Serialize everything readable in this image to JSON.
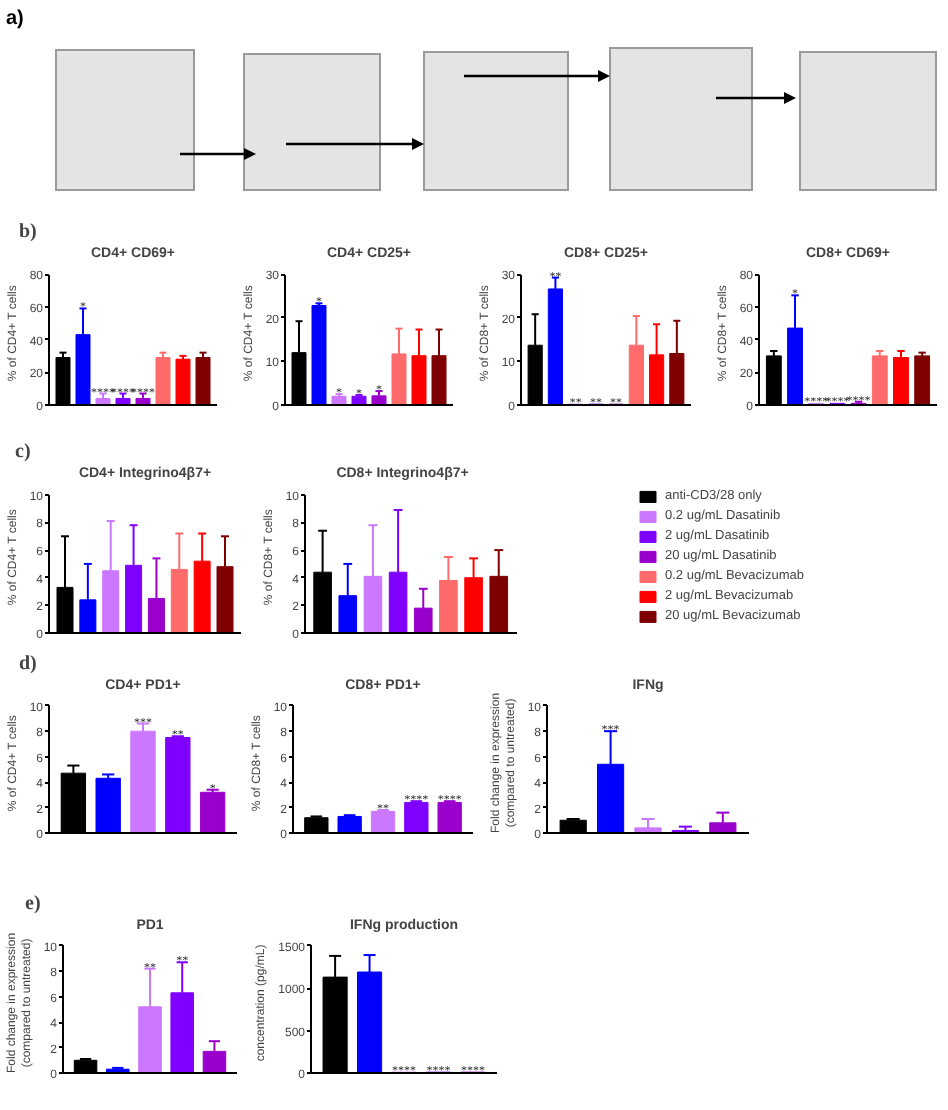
{
  "chart_data": [
    {
      "type": "other",
      "annotations": [
        "a)"
      ]
    },
    {
      "type": "bar",
      "title": "CD4+ CD69+",
      "ylabel": "% of CD4+ T cells",
      "annotations": [
        "b)"
      ],
      "categories": [
        null,
        null,
        null,
        null,
        null,
        null,
        null,
        null
      ],
      "values": [
        29,
        43,
        4,
        4,
        4,
        29,
        28,
        29
      ],
      "colors": [
        "#000000",
        "#0000ff",
        "#cc77ff",
        "#8000ff",
        "#9900cc",
        "#ff6b6b",
        "#ff0000",
        "#7f0000"
      ],
      "errors": [
        [
          29,
          32
        ],
        [
          43,
          59
        ],
        [
          4,
          7
        ],
        [
          4,
          7
        ],
        [
          4,
          7
        ],
        [
          29,
          32
        ],
        [
          28,
          30
        ],
        [
          29,
          32
        ]
      ],
      "value_labels": [
        null,
        "*",
        "****",
        "****",
        "****",
        null,
        null,
        null
      ],
      "ylim": [
        0,
        80
      ],
      "yticks": [
        0,
        20,
        40,
        60,
        80
      ],
      "tick_labels": "y"
    },
    {
      "type": "bar",
      "title": "CD4+ CD25+",
      "ylabel": "% of CD4+ T cells",
      "categories": [
        null,
        null,
        null,
        null,
        null,
        null,
        null,
        null
      ],
      "values": [
        12,
        22.8,
        2,
        2,
        2.1,
        11.7,
        11.3,
        11.3
      ],
      "colors": [
        "#000000",
        "#0000ff",
        "#cc77ff",
        "#8000ff",
        "#9900cc",
        "#ff6b6b",
        "#ff0000",
        "#7f0000"
      ],
      "errors": [
        [
          12,
          19.2
        ],
        [
          22.8,
          23.3
        ],
        [
          2,
          2.5
        ],
        [
          2,
          2.3
        ],
        [
          2.1,
          3.2
        ],
        [
          11.7,
          17.5
        ],
        [
          11.3,
          17.3
        ],
        [
          11.3,
          17.3
        ]
      ],
      "value_labels": [
        null,
        "*",
        "*",
        "*",
        "*",
        null,
        null,
        null
      ],
      "ylim": [
        0,
        30
      ],
      "yticks": [
        0,
        10,
        20,
        30
      ],
      "tick_labels": "y"
    },
    {
      "type": "bar",
      "title": "CD8+ CD25+",
      "ylabel": "% of CD8+ T cells",
      "categories": [
        null,
        null,
        null,
        null,
        null,
        null,
        null,
        null
      ],
      "values": [
        13.7,
        26.6,
        0.2,
        0.2,
        0.2,
        13.7,
        11.5,
        11.8
      ],
      "colors": [
        "#000000",
        "#0000ff",
        "#cc77ff",
        "#8000ff",
        "#9900cc",
        "#ff6b6b",
        "#ff0000",
        "#7f0000"
      ],
      "errors": [
        [
          13.7,
          20.8
        ],
        [
          26.6,
          29.2
        ],
        null,
        null,
        null,
        [
          13.7,
          20.4
        ],
        [
          11.5,
          18.5
        ],
        [
          11.8,
          19.3
        ]
      ],
      "value_labels": [
        null,
        "**",
        "**",
        "**",
        "**",
        null,
        null,
        null
      ],
      "ylim": [
        0,
        30
      ],
      "yticks": [
        0,
        10,
        20,
        30
      ],
      "tick_labels": "y"
    },
    {
      "type": "bar",
      "title": "CD8+ CD69+",
      "ylabel": "% of CD8+ T cells",
      "categories": [
        null,
        null,
        null,
        null,
        null,
        null,
        null,
        null
      ],
      "values": [
        30,
        47,
        1,
        1,
        1,
        30,
        29,
        30
      ],
      "colors": [
        "#000000",
        "#0000ff",
        "#cc77ff",
        "#8000ff",
        "#9900cc",
        "#ff6b6b",
        "#ff0000",
        "#7f0000"
      ],
      "errors": [
        [
          30,
          33
        ],
        [
          47,
          67
        ],
        null,
        null,
        [
          1,
          2
        ],
        [
          30,
          33
        ],
        [
          29,
          33
        ],
        [
          30,
          32
        ]
      ],
      "value_labels": [
        null,
        "*",
        "****",
        "****",
        "****",
        null,
        null,
        null
      ],
      "ylim": [
        0,
        80
      ],
      "yticks": [
        0,
        20,
        40,
        60,
        80
      ],
      "tick_labels": "y"
    },
    {
      "type": "bar",
      "title": "CD4+ Integrino4β7+",
      "ylabel": "% of CD4+ T cells",
      "annotations": [
        "c)"
      ],
      "categories": [
        null,
        null,
        null,
        null,
        null,
        null,
        null,
        null
      ],
      "values": [
        3.3,
        2.4,
        4.5,
        4.9,
        2.5,
        4.6,
        5.2,
        4.8
      ],
      "colors": [
        "#000000",
        "#0000ff",
        "#cc77ff",
        "#8000ff",
        "#9900cc",
        "#ff6b6b",
        "#ff0000",
        "#7f0000"
      ],
      "errors": [
        [
          3.3,
          7.0
        ],
        [
          2.4,
          5.0
        ],
        [
          4.5,
          8.1
        ],
        [
          4.9,
          7.8
        ],
        [
          2.5,
          5.4
        ],
        [
          4.6,
          7.2
        ],
        [
          5.2,
          7.2
        ],
        [
          4.8,
          7.0
        ]
      ],
      "ylim": [
        0,
        10
      ],
      "yticks": [
        0,
        2,
        4,
        6,
        8,
        10
      ],
      "tick_labels": "y"
    },
    {
      "type": "bar",
      "title": "CD8+ Integrino4β7+",
      "ylabel": "% of CD8+ T cells",
      "categories": [
        null,
        null,
        null,
        null,
        null,
        null,
        null,
        null
      ],
      "stacked": true,
      "series": [
        {
          "name": "anti-CD3/28 only",
          "color": "#000000",
          "values": [
            4.4,
            null,
            null,
            null,
            null,
            null,
            null,
            null
          ],
          "errors": [
            [
              4.4,
              7.4
            ],
            null,
            null,
            null,
            null,
            null,
            null,
            null
          ]
        },
        {
          "color": "#0000ff",
          "values": [
            null,
            2.7,
            null,
            null,
            null,
            null,
            null,
            null
          ],
          "errors": [
            null,
            [
              2.7,
              5.0
            ],
            null,
            null,
            null,
            null,
            null,
            null
          ]
        },
        {
          "name": "0.2 ug/mL Dasatinib",
          "color": "#cc77ff",
          "values": [
            null,
            null,
            4.1,
            null,
            null,
            null,
            null,
            null
          ],
          "errors": [
            null,
            null,
            [
              4.1,
              7.8
            ],
            null,
            null,
            null,
            null,
            null
          ]
        },
        {
          "name": "2 ug/mL Dasatinib",
          "color": "#8000ff",
          "values": [
            null,
            null,
            null,
            4.4,
            null,
            null,
            null,
            null
          ],
          "errors": [
            null,
            null,
            null,
            [
              4.4,
              8.9
            ],
            null,
            null,
            null,
            null
          ]
        },
        {
          "name": "20 ug/mL Dasatinib",
          "color": "#9900cc",
          "values": [
            null,
            null,
            null,
            null,
            1.8,
            null,
            null,
            null
          ],
          "errors": [
            null,
            null,
            null,
            null,
            [
              1.8,
              3.2
            ],
            null,
            null,
            null
          ]
        },
        {
          "name": "0.2 ug/mL Bevacizumab",
          "color": "#ff6b6b",
          "values": [
            null,
            null,
            null,
            null,
            null,
            3.8,
            null,
            null
          ],
          "errors": [
            null,
            null,
            null,
            null,
            null,
            [
              3.8,
              5.5
            ],
            null,
            null
          ]
        },
        {
          "name": "2 ug/mL Bevacizumab",
          "color": "#ff0000",
          "values": [
            null,
            null,
            null,
            null,
            null,
            null,
            4.0,
            null
          ],
          "errors": [
            null,
            null,
            null,
            null,
            null,
            null,
            [
              4.0,
              5.4
            ],
            null
          ]
        },
        {
          "name": "20 ug/mL Bevacizumab",
          "color": "#7f0000",
          "values": [
            null,
            null,
            null,
            null,
            null,
            null,
            null,
            4.1
          ],
          "errors": [
            null,
            null,
            null,
            null,
            null,
            null,
            null,
            [
              4.1,
              6.0
            ]
          ]
        }
      ],
      "legend": "right",
      "ylim": [
        0,
        10
      ],
      "yticks": [
        0,
        2,
        4,
        6,
        8,
        10
      ],
      "tick_labels": "y"
    },
    {
      "type": "bar",
      "title": "CD4+ PD1+",
      "ylabel": "% of CD4+ T cells",
      "annotations": [
        "d)"
      ],
      "categories": [
        null,
        null,
        null,
        null,
        null
      ],
      "values": [
        4.7,
        4.3,
        8.0,
        7.5,
        3.2
      ],
      "colors": [
        "#000000",
        "#0000ff",
        "#cc77ff",
        "#8000ff",
        "#9900cc"
      ],
      "errors": [
        [
          4.7,
          5.3
        ],
        [
          4.3,
          4.6
        ],
        [
          8.0,
          8.6
        ],
        [
          7.5,
          7.6
        ],
        [
          3.2,
          3.4
        ]
      ],
      "value_labels": [
        null,
        null,
        "***",
        "**",
        "*"
      ],
      "ylim": [
        0,
        10
      ],
      "yticks": [
        0,
        2,
        4,
        6,
        8,
        10
      ],
      "tick_labels": "y"
    },
    {
      "type": "bar",
      "title": "CD8+ PD1+",
      "ylabel": "% of CD8+ T cells",
      "categories": [
        null,
        null,
        null,
        null,
        null
      ],
      "values": [
        1.2,
        1.3,
        1.7,
        2.4,
        2.4
      ],
      "colors": [
        "#000000",
        "#0000ff",
        "#cc77ff",
        "#8000ff",
        "#9900cc"
      ],
      "errors": [
        [
          1.2,
          1.3
        ],
        [
          1.3,
          1.4
        ],
        [
          1.7,
          1.8
        ],
        [
          2.4,
          2.5
        ],
        [
          2.4,
          2.5
        ]
      ],
      "value_labels": [
        null,
        null,
        "**",
        "****",
        "****"
      ],
      "ylim": [
        0,
        10
      ],
      "yticks": [
        0,
        2,
        4,
        6,
        8,
        10
      ],
      "tick_labels": "y"
    },
    {
      "type": "bar",
      "title": "IFNg",
      "ylabel": "Fold change in expression\n(compared to untreated)",
      "categories": [
        null,
        null,
        null,
        null,
        null
      ],
      "values": [
        1.0,
        5.4,
        0.4,
        0.2,
        0.8
      ],
      "colors": [
        "#000000",
        "#0000ff",
        "#cc77ff",
        "#8000ff",
        "#9900cc"
      ],
      "errors": [
        [
          1.0,
          1.1
        ],
        [
          5.4,
          8.0
        ],
        [
          0.4,
          1.1
        ],
        [
          0.2,
          0.5
        ],
        [
          0.8,
          1.6
        ]
      ],
      "value_labels": [
        null,
        "***",
        null,
        null,
        null
      ],
      "ylim": [
        0,
        10
      ],
      "yticks": [
        0,
        2,
        4,
        6,
        8,
        10
      ],
      "tick_labels": "y"
    },
    {
      "type": "bar",
      "title": "PD1",
      "ylabel": "Fold change in expression\n(compared to untreated)",
      "annotations": [
        "e)"
      ],
      "categories": [
        null,
        null,
        null,
        null,
        null
      ],
      "values": [
        1.0,
        0.3,
        5.2,
        6.3,
        1.7
      ],
      "colors": [
        "#000000",
        "#0000ff",
        "#cc77ff",
        "#8000ff",
        "#9900cc"
      ],
      "errors": [
        [
          1.0,
          1.1
        ],
        [
          0.3,
          0.4
        ],
        [
          5.2,
          8.2
        ],
        [
          6.3,
          8.7
        ],
        [
          1.7,
          2.5
        ]
      ],
      "value_labels": [
        null,
        null,
        "**",
        "**",
        null
      ],
      "ylim": [
        0,
        10
      ],
      "yticks": [
        0,
        2,
        4,
        6,
        8,
        10
      ],
      "tick_labels": "y"
    },
    {
      "type": "bar",
      "title": "IFNg production",
      "ylabel": "concentration (pg/mL)",
      "categories": [
        null,
        null,
        null,
        null,
        null
      ],
      "values": [
        1130,
        1190,
        10,
        10,
        10
      ],
      "colors": [
        "#000000",
        "#0000ff",
        "#cc77ff",
        "#8000ff",
        "#9900cc"
      ],
      "errors": [
        [
          1130,
          1380
        ],
        [
          1190,
          1390
        ],
        null,
        null,
        null
      ],
      "value_labels": [
        null,
        null,
        "****",
        "****",
        "****"
      ],
      "ylim": [
        0,
        1500
      ],
      "yticks": [
        0,
        500,
        1000,
        1500
      ],
      "tick_labels": "y"
    }
  ]
}
